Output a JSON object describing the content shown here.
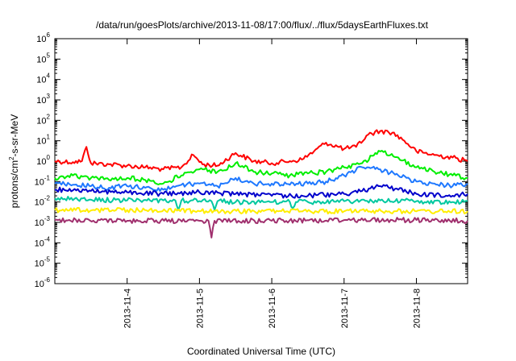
{
  "chart_data": {
    "type": "line",
    "title": "/data/run/goesPlots/archive/2013-11-08/17:00/flux/../flux/5daysEarthFluxes.txt",
    "xlabel": "Coordinated Universal Time (UTC)",
    "ylabel": {
      "base": "protons/cm",
      "sup": "2",
      "rest": "-s-sr-MeV"
    },
    "yscale": "log",
    "ylim": [
      1e-06,
      1000000.0
    ],
    "xlim": [
      "2013-11-03 00:00",
      "2013-11-08 17:00"
    ],
    "grid": false,
    "legend": "none",
    "y_ticks": [
      {
        "base": "10",
        "exp": "-6",
        "value": 1e-06
      },
      {
        "base": "10",
        "exp": "-5",
        "value": 1e-05
      },
      {
        "base": "10",
        "exp": "-4",
        "value": 0.0001
      },
      {
        "base": "10",
        "exp": "-3",
        "value": 0.001
      },
      {
        "base": "10",
        "exp": "-2",
        "value": 0.01
      },
      {
        "base": "10",
        "exp": "-1",
        "value": 0.1
      },
      {
        "base": "10",
        "exp": "0",
        "value": 1
      },
      {
        "base": "10",
        "exp": "1",
        "value": 10
      },
      {
        "base": "10",
        "exp": "2",
        "value": 100
      },
      {
        "base": "10",
        "exp": "3",
        "value": 1000
      },
      {
        "base": "10",
        "exp": "4",
        "value": 10000
      },
      {
        "base": "10",
        "exp": "5",
        "value": 100000
      },
      {
        "base": "10",
        "exp": "6",
        "value": 1000000
      }
    ],
    "x_ticks": [
      {
        "label": "2013-11-4",
        "date": "2013-11-04 00:00"
      },
      {
        "label": "2013-11-5",
        "date": "2013-11-05 00:00"
      },
      {
        "label": "2013-11-6",
        "date": "2013-11-06 00:00"
      },
      {
        "label": "2013-11-7",
        "date": "2013-11-07 00:00"
      },
      {
        "label": "2013-11-8",
        "date": "2013-11-08 00:00"
      }
    ],
    "series": [
      {
        "color": "#ff0000",
        "x": [
          "2013-11-03 00:00",
          "2013-11-03 06:00",
          "2013-11-03 09:00",
          "2013-11-03 10:30",
          "2013-11-03 12:00",
          "2013-11-03 18:00",
          "2013-11-04 00:00",
          "2013-11-04 06:00",
          "2013-11-04 12:00",
          "2013-11-04 18:00",
          "2013-11-04 22:00",
          "2013-11-05 01:00",
          "2013-11-05 06:00",
          "2013-11-05 12:00",
          "2013-11-05 18:00",
          "2013-11-06 00:00",
          "2013-11-06 06:00",
          "2013-11-06 10:00",
          "2013-11-06 14:00",
          "2013-11-06 18:00",
          "2013-11-07 00:00",
          "2013-11-07 04:00",
          "2013-11-07 08:00",
          "2013-11-07 12:00",
          "2013-11-07 16:00",
          "2013-11-07 20:00",
          "2013-11-08 00:00",
          "2013-11-08 06:00",
          "2013-11-08 12:00",
          "2013-11-08 17:00"
        ],
        "y": [
          1.0,
          0.9,
          1.0,
          5.0,
          0.8,
          0.7,
          0.6,
          0.5,
          0.4,
          0.5,
          2.0,
          0.7,
          0.6,
          2.5,
          1.0,
          0.8,
          1.0,
          1.2,
          3.0,
          8.0,
          4.0,
          5.0,
          20.0,
          30.0,
          25.0,
          10.0,
          3.0,
          2.0,
          1.5,
          1.0
        ]
      },
      {
        "color": "#00ee00",
        "x": [
          "2013-11-03 00:00",
          "2013-11-03 06:00",
          "2013-11-03 12:00",
          "2013-11-03 18:00",
          "2013-11-04 00:00",
          "2013-11-04 06:00",
          "2013-11-04 12:00",
          "2013-11-04 18:00",
          "2013-11-05 00:00",
          "2013-11-05 06:00",
          "2013-11-05 12:00",
          "2013-11-05 18:00",
          "2013-11-06 00:00",
          "2013-11-06 06:00",
          "2013-11-06 12:00",
          "2013-11-06 18:00",
          "2013-11-07 00:00",
          "2013-11-07 06:00",
          "2013-11-07 12:00",
          "2013-11-07 18:00",
          "2013-11-08 00:00",
          "2013-11-08 06:00",
          "2013-11-08 12:00",
          "2013-11-08 17:00"
        ],
        "y": [
          0.15,
          0.2,
          0.15,
          0.12,
          0.15,
          0.12,
          0.08,
          0.2,
          0.4,
          0.3,
          0.8,
          0.3,
          0.25,
          0.2,
          0.25,
          0.3,
          0.5,
          0.8,
          3.0,
          1.5,
          0.5,
          0.3,
          0.2,
          0.15
        ]
      },
      {
        "color": "#1e78ff",
        "x": [
          "2013-11-03 00:00",
          "2013-11-03 06:00",
          "2013-11-03 12:00",
          "2013-11-03 18:00",
          "2013-11-04 00:00",
          "2013-11-04 06:00",
          "2013-11-04 12:00",
          "2013-11-04 18:00",
          "2013-11-05 00:00",
          "2013-11-05 06:00",
          "2013-11-05 12:00",
          "2013-11-05 18:00",
          "2013-11-06 00:00",
          "2013-11-06 06:00",
          "2013-11-06 12:00",
          "2013-11-06 18:00",
          "2013-11-07 00:00",
          "2013-11-07 06:00",
          "2013-11-07 12:00",
          "2013-11-07 18:00",
          "2013-11-08 00:00",
          "2013-11-08 06:00",
          "2013-11-08 12:00",
          "2013-11-08 17:00"
        ],
        "y": [
          0.08,
          0.07,
          0.06,
          0.05,
          0.06,
          0.05,
          0.04,
          0.07,
          0.08,
          0.06,
          0.15,
          0.08,
          0.08,
          0.07,
          0.08,
          0.1,
          0.2,
          0.5,
          0.4,
          0.2,
          0.1,
          0.08,
          0.06,
          0.08
        ]
      },
      {
        "color": "#0000cc",
        "x": [
          "2013-11-03 00:00",
          "2013-11-03 12:00",
          "2013-11-04 00:00",
          "2013-11-04 12:00",
          "2013-11-05 00:00",
          "2013-11-05 12:00",
          "2013-11-06 00:00",
          "2013-11-06 12:00",
          "2013-11-07 00:00",
          "2013-11-07 06:00",
          "2013-11-07 12:00",
          "2013-11-07 18:00",
          "2013-11-08 00:00",
          "2013-11-08 12:00",
          "2013-11-08 17:00"
        ],
        "y": [
          0.04,
          0.035,
          0.03,
          0.025,
          0.03,
          0.025,
          0.02,
          0.02,
          0.025,
          0.035,
          0.06,
          0.04,
          0.025,
          0.02,
          0.025
        ]
      },
      {
        "color": "#00c8a0",
        "x": [
          "2013-11-03 00:00",
          "2013-11-03 12:00",
          "2013-11-04 00:00",
          "2013-11-04 12:00",
          "2013-11-04 16:00",
          "2013-11-04 17:00",
          "2013-11-04 18:00",
          "2013-11-05 00:00",
          "2013-11-05 04:00",
          "2013-11-05 05:00",
          "2013-11-05 06:00",
          "2013-11-05 12:00",
          "2013-11-06 00:00",
          "2013-11-06 06:00",
          "2013-11-06 07:00",
          "2013-11-06 08:00",
          "2013-11-06 12:00",
          "2013-11-07 00:00",
          "2013-11-07 12:00",
          "2013-11-08 00:00",
          "2013-11-08 12:00",
          "2013-11-08 17:00"
        ],
        "y": [
          0.015,
          0.013,
          0.012,
          0.012,
          0.012,
          0.004,
          0.012,
          0.011,
          0.011,
          0.004,
          0.011,
          0.01,
          0.01,
          0.01,
          0.005,
          0.01,
          0.01,
          0.011,
          0.012,
          0.011,
          0.01,
          0.011
        ]
      },
      {
        "color": "#ffee00",
        "x": [
          "2013-11-03 00:00",
          "2013-11-04 00:00",
          "2013-11-05 00:00",
          "2013-11-06 00:00",
          "2013-11-07 00:00",
          "2013-11-08 00:00",
          "2013-11-08 17:00"
        ],
        "y": [
          0.004,
          0.004,
          0.0035,
          0.0035,
          0.0035,
          0.0035,
          0.0035
        ]
      },
      {
        "color": "#a0306e",
        "x": [
          "2013-11-03 00:00",
          "2013-11-04 00:00",
          "2013-11-05 00:00",
          "2013-11-05 03:00",
          "2013-11-05 04:00",
          "2013-11-05 05:00",
          "2013-11-06 00:00",
          "2013-11-07 00:00",
          "2013-11-08 00:00",
          "2013-11-08 17:00"
        ],
        "y": [
          0.0013,
          0.0012,
          0.0012,
          0.0012,
          0.00018,
          0.0012,
          0.0012,
          0.0013,
          0.0013,
          0.0012
        ]
      }
    ]
  }
}
